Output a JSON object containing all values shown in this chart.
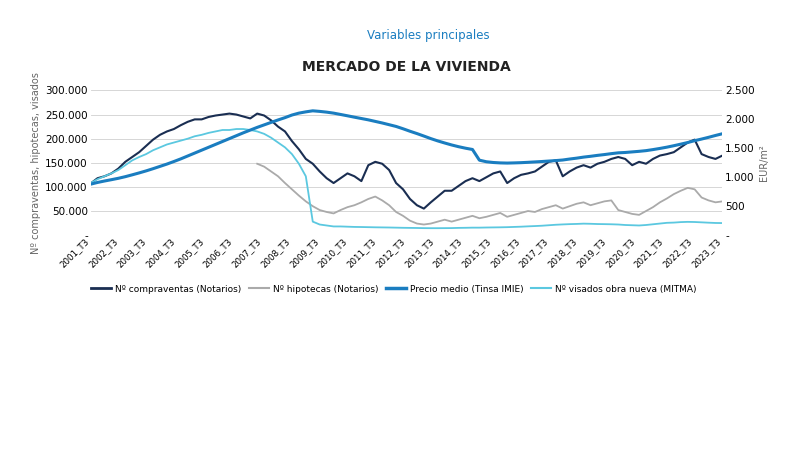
{
  "title": "MERCADO DE LA VIVIENDA",
  "subtitle": "Variables principales",
  "ylabel_left": "Nº compraventas, hipotecas, visados",
  "ylabel_right": "EUR/m²",
  "background_color": "#ffffff",
  "grid_color": "#d0d0d0",
  "quarters": [
    "2001_T3",
    "2002_T3",
    "2003_T3",
    "2004_T3",
    "2005_T3",
    "2006_T3",
    "2007_T3",
    "2008_T3",
    "2009_T3",
    "2010_T3",
    "2011_T3",
    "2012_T3",
    "2013_T3",
    "2014_T3",
    "2015_T3",
    "2016_T3",
    "2017_T3",
    "2018_T3",
    "2019_T3",
    "2020_T3",
    "2021_T3",
    "2022_T3",
    "2023_T3"
  ],
  "compraventas_color": "#1a2e52",
  "hipotecas_color": "#aaaaaa",
  "precio_color": "#1a7dc0",
  "visados_color": "#5bc8e0",
  "comp_q": [
    107000,
    118000,
    122000,
    128000,
    138000,
    152000,
    162000,
    172000,
    185000,
    198000,
    208000,
    215000,
    220000,
    228000,
    235000,
    240000,
    240000,
    245000,
    248000,
    250000,
    252000,
    250000,
    246000,
    242000,
    252000,
    248000,
    238000,
    225000,
    215000,
    195000,
    178000,
    158000,
    148000,
    132000,
    118000,
    108000,
    118000,
    128000,
    122000,
    112000,
    145000,
    152000,
    148000,
    135000,
    108000,
    95000,
    75000,
    62000,
    55000,
    68000,
    80000,
    92000,
    92000,
    102000,
    112000,
    118000,
    112000,
    120000,
    128000,
    132000,
    108000,
    118000,
    125000,
    128000,
    132000,
    142000,
    152000,
    155000,
    122000,
    132000,
    140000,
    145000,
    140000,
    148000,
    152000,
    158000,
    162000,
    158000,
    145000,
    152000,
    148000,
    158000,
    165000,
    168000,
    172000,
    182000,
    192000,
    198000,
    168000,
    162000,
    158000,
    165000
  ],
  "hipo_q": [
    null,
    null,
    null,
    null,
    null,
    null,
    null,
    null,
    null,
    null,
    null,
    null,
    null,
    null,
    null,
    null,
    null,
    null,
    null,
    null,
    null,
    null,
    null,
    null,
    148000,
    142000,
    132000,
    122000,
    108000,
    95000,
    82000,
    70000,
    60000,
    52000,
    48000,
    45000,
    52000,
    58000,
    62000,
    68000,
    75000,
    80000,
    72000,
    62000,
    48000,
    40000,
    30000,
    24000,
    22000,
    24000,
    28000,
    32000,
    28000,
    32000,
    36000,
    40000,
    35000,
    38000,
    42000,
    46000,
    38000,
    42000,
    46000,
    50000,
    48000,
    54000,
    58000,
    62000,
    55000,
    60000,
    65000,
    68000,
    62000,
    66000,
    70000,
    72000,
    52000,
    48000,
    44000,
    42000,
    50000,
    58000,
    68000,
    76000,
    85000,
    92000,
    98000,
    95000,
    78000,
    72000,
    68000,
    70000
  ],
  "precio_q": [
    880,
    910,
    935,
    958,
    982,
    1010,
    1042,
    1075,
    1110,
    1148,
    1188,
    1228,
    1272,
    1318,
    1368,
    1418,
    1468,
    1518,
    1568,
    1618,
    1668,
    1718,
    1768,
    1815,
    1862,
    1905,
    1948,
    1990,
    2030,
    2075,
    2108,
    2130,
    2148,
    2138,
    2125,
    2108,
    2085,
    2062,
    2038,
    2015,
    1992,
    1965,
    1938,
    1908,
    1878,
    1838,
    1795,
    1755,
    1712,
    1668,
    1628,
    1592,
    1558,
    1528,
    1502,
    1480,
    1295,
    1268,
    1255,
    1248,
    1245,
    1248,
    1252,
    1258,
    1265,
    1272,
    1280,
    1288,
    1298,
    1315,
    1330,
    1348,
    1362,
    1378,
    1392,
    1408,
    1422,
    1428,
    1438,
    1448,
    1460,
    1478,
    1498,
    1520,
    1545,
    1572,
    1600,
    1632,
    1660,
    1690,
    1722,
    1752
  ],
  "visados_q": [
    108000,
    116000,
    122000,
    128000,
    135000,
    145000,
    155000,
    162000,
    168000,
    176000,
    182000,
    188000,
    192000,
    196000,
    200000,
    205000,
    208000,
    212000,
    215000,
    218000,
    218000,
    220000,
    220000,
    218000,
    215000,
    210000,
    202000,
    192000,
    182000,
    168000,
    148000,
    122000,
    28000,
    22000,
    20000,
    18000,
    18000,
    17500,
    17000,
    16800,
    16500,
    16200,
    16000,
    15800,
    15500,
    15200,
    15000,
    14800,
    14500,
    14400,
    14400,
    14500,
    14600,
    15000,
    15200,
    15500,
    15500,
    15800,
    16000,
    16200,
    16500,
    17000,
    17500,
    18200,
    18800,
    19500,
    20500,
    21500,
    22200,
    22800,
    23200,
    23800,
    23500,
    23000,
    22800,
    22500,
    22000,
    21000,
    20500,
    20000,
    21000,
    22500,
    24000,
    25500,
    26000,
    27000,
    27500,
    27200,
    26500,
    25800,
    25200,
    25000
  ],
  "legend_entries": [
    {
      "label": "Nº compraventas (Notarios)",
      "color": "#1a2e52",
      "linewidth": 2.0
    },
    {
      "label": "Nº hipotecas (Notarios)",
      "color": "#aaaaaa",
      "linewidth": 1.5
    },
    {
      "label": "Precio medio (Tinsa IMIE)",
      "color": "#1a7dc0",
      "linewidth": 2.5
    },
    {
      "label": "Nº visados obra nueva (MITMA)",
      "color": "#5bc8e0",
      "linewidth": 1.5
    }
  ]
}
